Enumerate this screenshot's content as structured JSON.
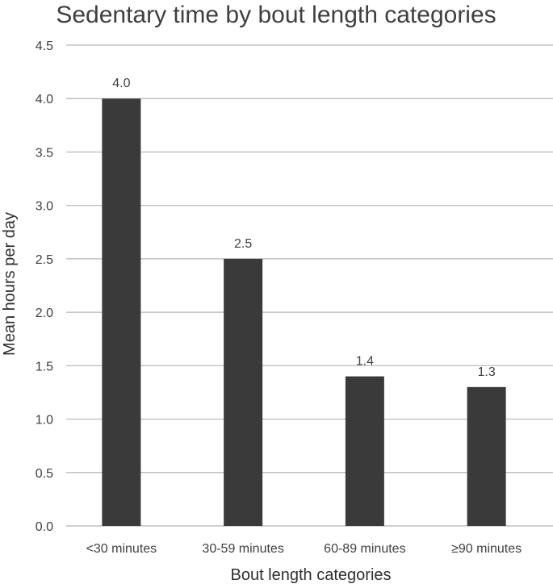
{
  "chart_data": {
    "type": "bar",
    "title": "Sedentary time by bout length categories",
    "xlabel": "Bout length categories",
    "ylabel": "Mean hours per day",
    "categories": [
      "<30 minutes",
      "30-59 minutes",
      "60-89 minutes",
      "≥90 minutes"
    ],
    "values": [
      4.0,
      2.5,
      1.4,
      1.3
    ],
    "data_labels": [
      "4.0",
      "2.5",
      "1.4",
      "1.3"
    ],
    "ylim": [
      0,
      4.5
    ],
    "yticks": [
      0.0,
      0.5,
      1.0,
      1.5,
      2.0,
      2.5,
      3.0,
      3.5,
      4.0,
      4.5
    ],
    "ytick_labels": [
      "0.0",
      "0.5",
      "1.0",
      "1.5",
      "2.0",
      "2.5",
      "3.0",
      "3.5",
      "4.0",
      "4.5"
    ],
    "grid": true,
    "bar_color": "#3a3a3a",
    "grid_color": "#b5b5b5",
    "legend": "none"
  }
}
